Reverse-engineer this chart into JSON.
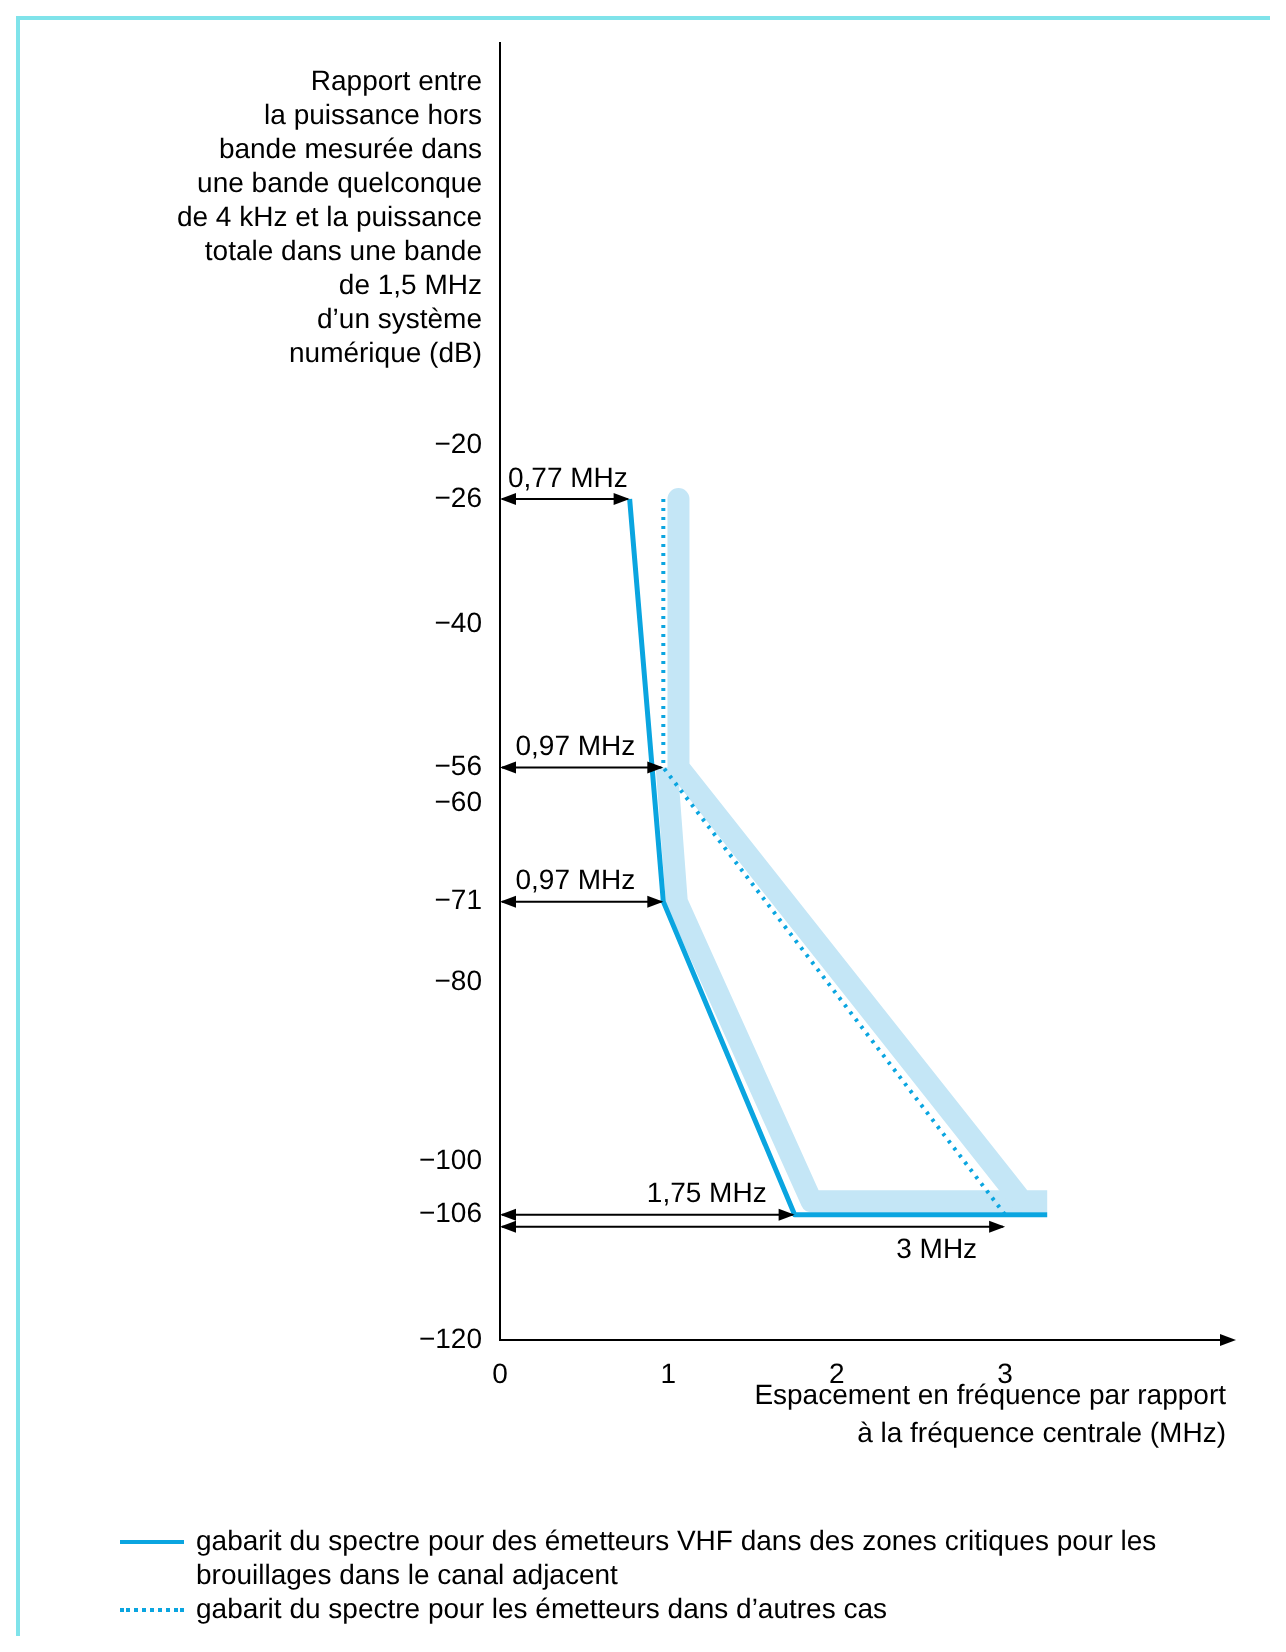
{
  "chart_data": {
    "type": "line",
    "ylabel": "Rapport entre\nla puissance hors\nbande mesurée dans\nune bande quelconque\nde 4 kHz et la puissance\ntotale dans une bande\nde 1,5 MHz\nd’un système\nnumérique (dB)",
    "xlabel": "Espacement en fréquence par rapport\nà la fréquence centrale (MHz)",
    "xlim": [
      0,
      4.3
    ],
    "xticks": [
      0,
      1,
      2,
      3
    ],
    "ylim": [
      -120,
      25
    ],
    "yticks": [
      -20,
      -26,
      -40,
      -56,
      -60,
      -71,
      -80,
      -100,
      -106,
      -120
    ],
    "grid": false,
    "legend": "bottom",
    "marker": "none",
    "series": [
      {
        "name": "gabarit du spectre pour des émetteurs VHF dans des zones critiques pour les brouillages dans le canal adjacent",
        "color": "#0aa5e0",
        "line_style": "solid",
        "x": [
          0.77,
          0.97,
          1.75,
          3.25
        ],
        "values": [
          -26,
          -71,
          -106,
          -106
        ]
      },
      {
        "name": "gabarit du spectre pour les émetteurs dans d’autres cas",
        "color": "#0aa5e0",
        "line_style": "dotted",
        "x": [
          0.97,
          0.97,
          3
        ],
        "values": [
          -26,
          -56,
          -106
        ]
      },
      {
        "color": "#c4e6f6",
        "line_style": "solid",
        "x": [
          1.06,
          1.06,
          3.1,
          3.25
        ],
        "values": [
          -26,
          -56,
          -104.5,
          -104.5
        ]
      },
      {
        "color": "#c4e6f6",
        "line_style": "solid",
        "x": [
          0.99,
          1.05,
          1.85,
          3.1
        ],
        "values": [
          -56,
          -71,
          -104.5,
          -104.5
        ]
      }
    ],
    "annotations": [
      {
        "text": "0,77 MHz",
        "x": 0.77,
        "y": -26
      },
      {
        "text": "0,97 MHz",
        "x": 0.97,
        "y": -56
      },
      {
        "text": "0,97 MHz",
        "x": 0.97,
        "y": -71
      },
      {
        "text": "1,75 MHz",
        "x": 1.75,
        "y": -106
      },
      {
        "text": "3 MHz",
        "x": 3,
        "y": -106
      }
    ]
  }
}
